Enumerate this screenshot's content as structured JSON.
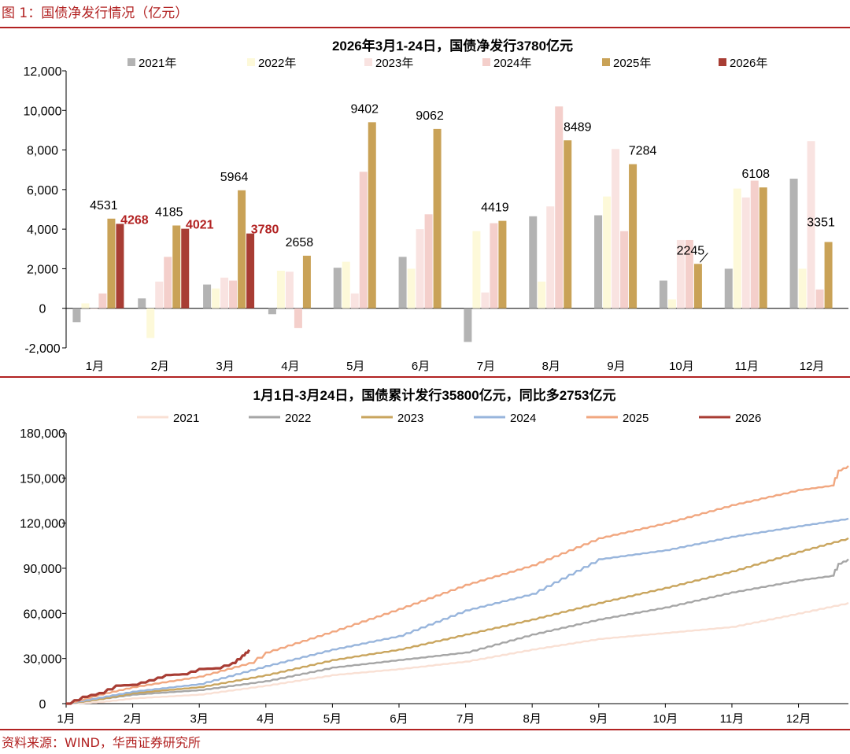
{
  "figure": {
    "title": "图 1：国债净发行情况（亿元）",
    "source": "资料来源：WIND，华西证券研究所"
  },
  "colors": {
    "accent": "#b22222",
    "y2021": "#b3b3b3",
    "y2022": "#fdf9d9",
    "y2023": "#f9e3e1",
    "y2024": "#f4cfcb",
    "y2025": "#c9a257",
    "y2026": "#a83d34",
    "l2021": "#f9e0d4",
    "l2022": "#a6a6a6",
    "l2023": "#c9a55e",
    "l2024": "#98b5dc",
    "l2025": "#f1a780",
    "l2026": "#a83d34"
  },
  "chart_data": [
    {
      "type": "bar",
      "title": "2026年3月1-24日，国债净发行3780亿元",
      "categories": [
        "1月",
        "2月",
        "3月",
        "4月",
        "5月",
        "6月",
        "7月",
        "8月",
        "9月",
        "10月",
        "11月",
        "12月"
      ],
      "ylim": [
        -2000,
        12000
      ],
      "yticks": [
        -2000,
        0,
        2000,
        4000,
        6000,
        8000,
        10000,
        12000
      ],
      "ytick_labels": [
        "-2,000",
        "0",
        "2,000",
        "4,000",
        "6,000",
        "8,000",
        "10,000",
        "12,000"
      ],
      "legend": [
        "2021年",
        "2022年",
        "2023年",
        "2024年",
        "2025年",
        "2026年"
      ],
      "series": [
        {
          "name": "2021年",
          "values": [
            -700,
            500,
            1200,
            -300,
            2050,
            2600,
            -1700,
            4650,
            4700,
            1400,
            2000,
            6550
          ]
        },
        {
          "name": "2022年",
          "values": [
            250,
            -1500,
            1000,
            1900,
            2350,
            2000,
            3900,
            1350,
            5650,
            450,
            6050,
            2000
          ]
        },
        {
          "name": "2023年",
          "values": [
            0,
            1350,
            1550,
            1850,
            750,
            4000,
            800,
            5150,
            8050,
            3450,
            5600,
            8450
          ]
        },
        {
          "name": "2024年",
          "values": [
            750,
            2600,
            1400,
            -1000,
            6900,
            4750,
            4300,
            10200,
            3900,
            3450,
            6450,
            950
          ]
        },
        {
          "name": "2025年",
          "values": [
            4531,
            4185,
            5964,
            2658,
            9402,
            9062,
            4419,
            8489,
            7284,
            2245,
            6108,
            3351
          ]
        },
        {
          "name": "2026年",
          "values": [
            4268,
            4021,
            3780,
            null,
            null,
            null,
            null,
            null,
            null,
            null,
            null,
            null
          ]
        }
      ],
      "data_labels_2025": [
        "4531",
        "4185",
        "5964",
        "2658",
        "9402",
        "9062",
        "4419",
        "8489",
        "7284",
        "2245",
        "6108",
        "3351"
      ],
      "data_labels_2026": [
        "4268",
        "4021",
        "3780"
      ]
    },
    {
      "type": "line",
      "title": "1月1日-3月24日，国债累计发行35800亿元，同比多2753亿元",
      "xlabels": [
        "1月",
        "2月",
        "3月",
        "4月",
        "5月",
        "6月",
        "7月",
        "8月",
        "9月",
        "10月",
        "11月",
        "12月"
      ],
      "x_unit": "month (1.0 = Jan 1)",
      "ylim": [
        0,
        180000
      ],
      "yticks": [
        0,
        30000,
        60000,
        90000,
        120000,
        150000,
        180000
      ],
      "ytick_labels": [
        "0",
        "30,000",
        "60,000",
        "90,000",
        "120,000",
        "150,000",
        "180,000"
      ],
      "legend": [
        "2021",
        "2022",
        "2023",
        "2024",
        "2025",
        "2026"
      ],
      "series": [
        {
          "name": "2021",
          "points": [
            [
              1.0,
              0
            ],
            [
              1.5,
              1000
            ],
            [
              2.0,
              3500
            ],
            [
              3.0,
              6000
            ],
            [
              4.0,
              12000
            ],
            [
              5.0,
              19000
            ],
            [
              6.0,
              23000
            ],
            [
              7.0,
              28000
            ],
            [
              8.0,
              36000
            ],
            [
              9.0,
              43000
            ],
            [
              10.0,
              47000
            ],
            [
              11.0,
              51000
            ],
            [
              12.0,
              60000
            ],
            [
              12.75,
              67000
            ]
          ]
        },
        {
          "name": "2022",
          "points": [
            [
              1.0,
              0
            ],
            [
              1.5,
              3000
            ],
            [
              2.0,
              6000
            ],
            [
              3.0,
              9000
            ],
            [
              4.0,
              15000
            ],
            [
              5.0,
              24000
            ],
            [
              6.0,
              29000
            ],
            [
              7.0,
              34000
            ],
            [
              8.0,
              46000
            ],
            [
              9.0,
              56000
            ],
            [
              10.0,
              64000
            ],
            [
              11.0,
              74000
            ],
            [
              12.0,
              82000
            ],
            [
              12.5,
              85000
            ],
            [
              12.6,
              93000
            ],
            [
              12.75,
              96000
            ]
          ]
        },
        {
          "name": "2023",
          "points": [
            [
              1.0,
              0
            ],
            [
              1.5,
              3000
            ],
            [
              2.0,
              7000
            ],
            [
              3.0,
              11000
            ],
            [
              4.0,
              19000
            ],
            [
              5.0,
              29000
            ],
            [
              6.0,
              36000
            ],
            [
              7.0,
              46000
            ],
            [
              8.0,
              56000
            ],
            [
              9.0,
              67000
            ],
            [
              10.0,
              77000
            ],
            [
              11.0,
              88000
            ],
            [
              12.0,
              101000
            ],
            [
              12.75,
              110000
            ]
          ]
        },
        {
          "name": "2024",
          "points": [
            [
              1.0,
              0
            ],
            [
              1.5,
              4000
            ],
            [
              2.0,
              8000
            ],
            [
              3.0,
              13000
            ],
            [
              4.0,
              25000
            ],
            [
              5.0,
              36000
            ],
            [
              6.0,
              45000
            ],
            [
              7.0,
              62000
            ],
            [
              8.0,
              73000
            ],
            [
              9.0,
              96000
            ],
            [
              10.0,
              102000
            ],
            [
              11.0,
              111000
            ],
            [
              12.0,
              118000
            ],
            [
              12.75,
              123000
            ]
          ]
        },
        {
          "name": "2025",
          "points": [
            [
              1.0,
              0
            ],
            [
              1.5,
              6000
            ],
            [
              2.0,
              11000
            ],
            [
              3.0,
              18000
            ],
            [
              3.75,
              27000
            ],
            [
              4.0,
              34000
            ],
            [
              5.0,
              48000
            ],
            [
              6.0,
              63000
            ],
            [
              7.0,
              79000
            ],
            [
              8.0,
              92000
            ],
            [
              9.0,
              110000
            ],
            [
              10.0,
              120000
            ],
            [
              11.0,
              132000
            ],
            [
              12.0,
              142000
            ],
            [
              12.5,
              145000
            ],
            [
              12.6,
              155000
            ],
            [
              12.75,
              158000
            ]
          ]
        },
        {
          "name": "2026",
          "points": [
            [
              1.0,
              0
            ],
            [
              1.25,
              4500
            ],
            [
              1.5,
              7000
            ],
            [
              1.75,
              12000
            ],
            [
              2.0,
              12500
            ],
            [
              2.25,
              15500
            ],
            [
              2.5,
              19000
            ],
            [
              2.75,
              19500
            ],
            [
              3.0,
              23000
            ],
            [
              3.25,
              23500
            ],
            [
              3.5,
              27000
            ],
            [
              3.65,
              32000
            ],
            [
              3.75,
              35800
            ]
          ]
        }
      ]
    }
  ]
}
